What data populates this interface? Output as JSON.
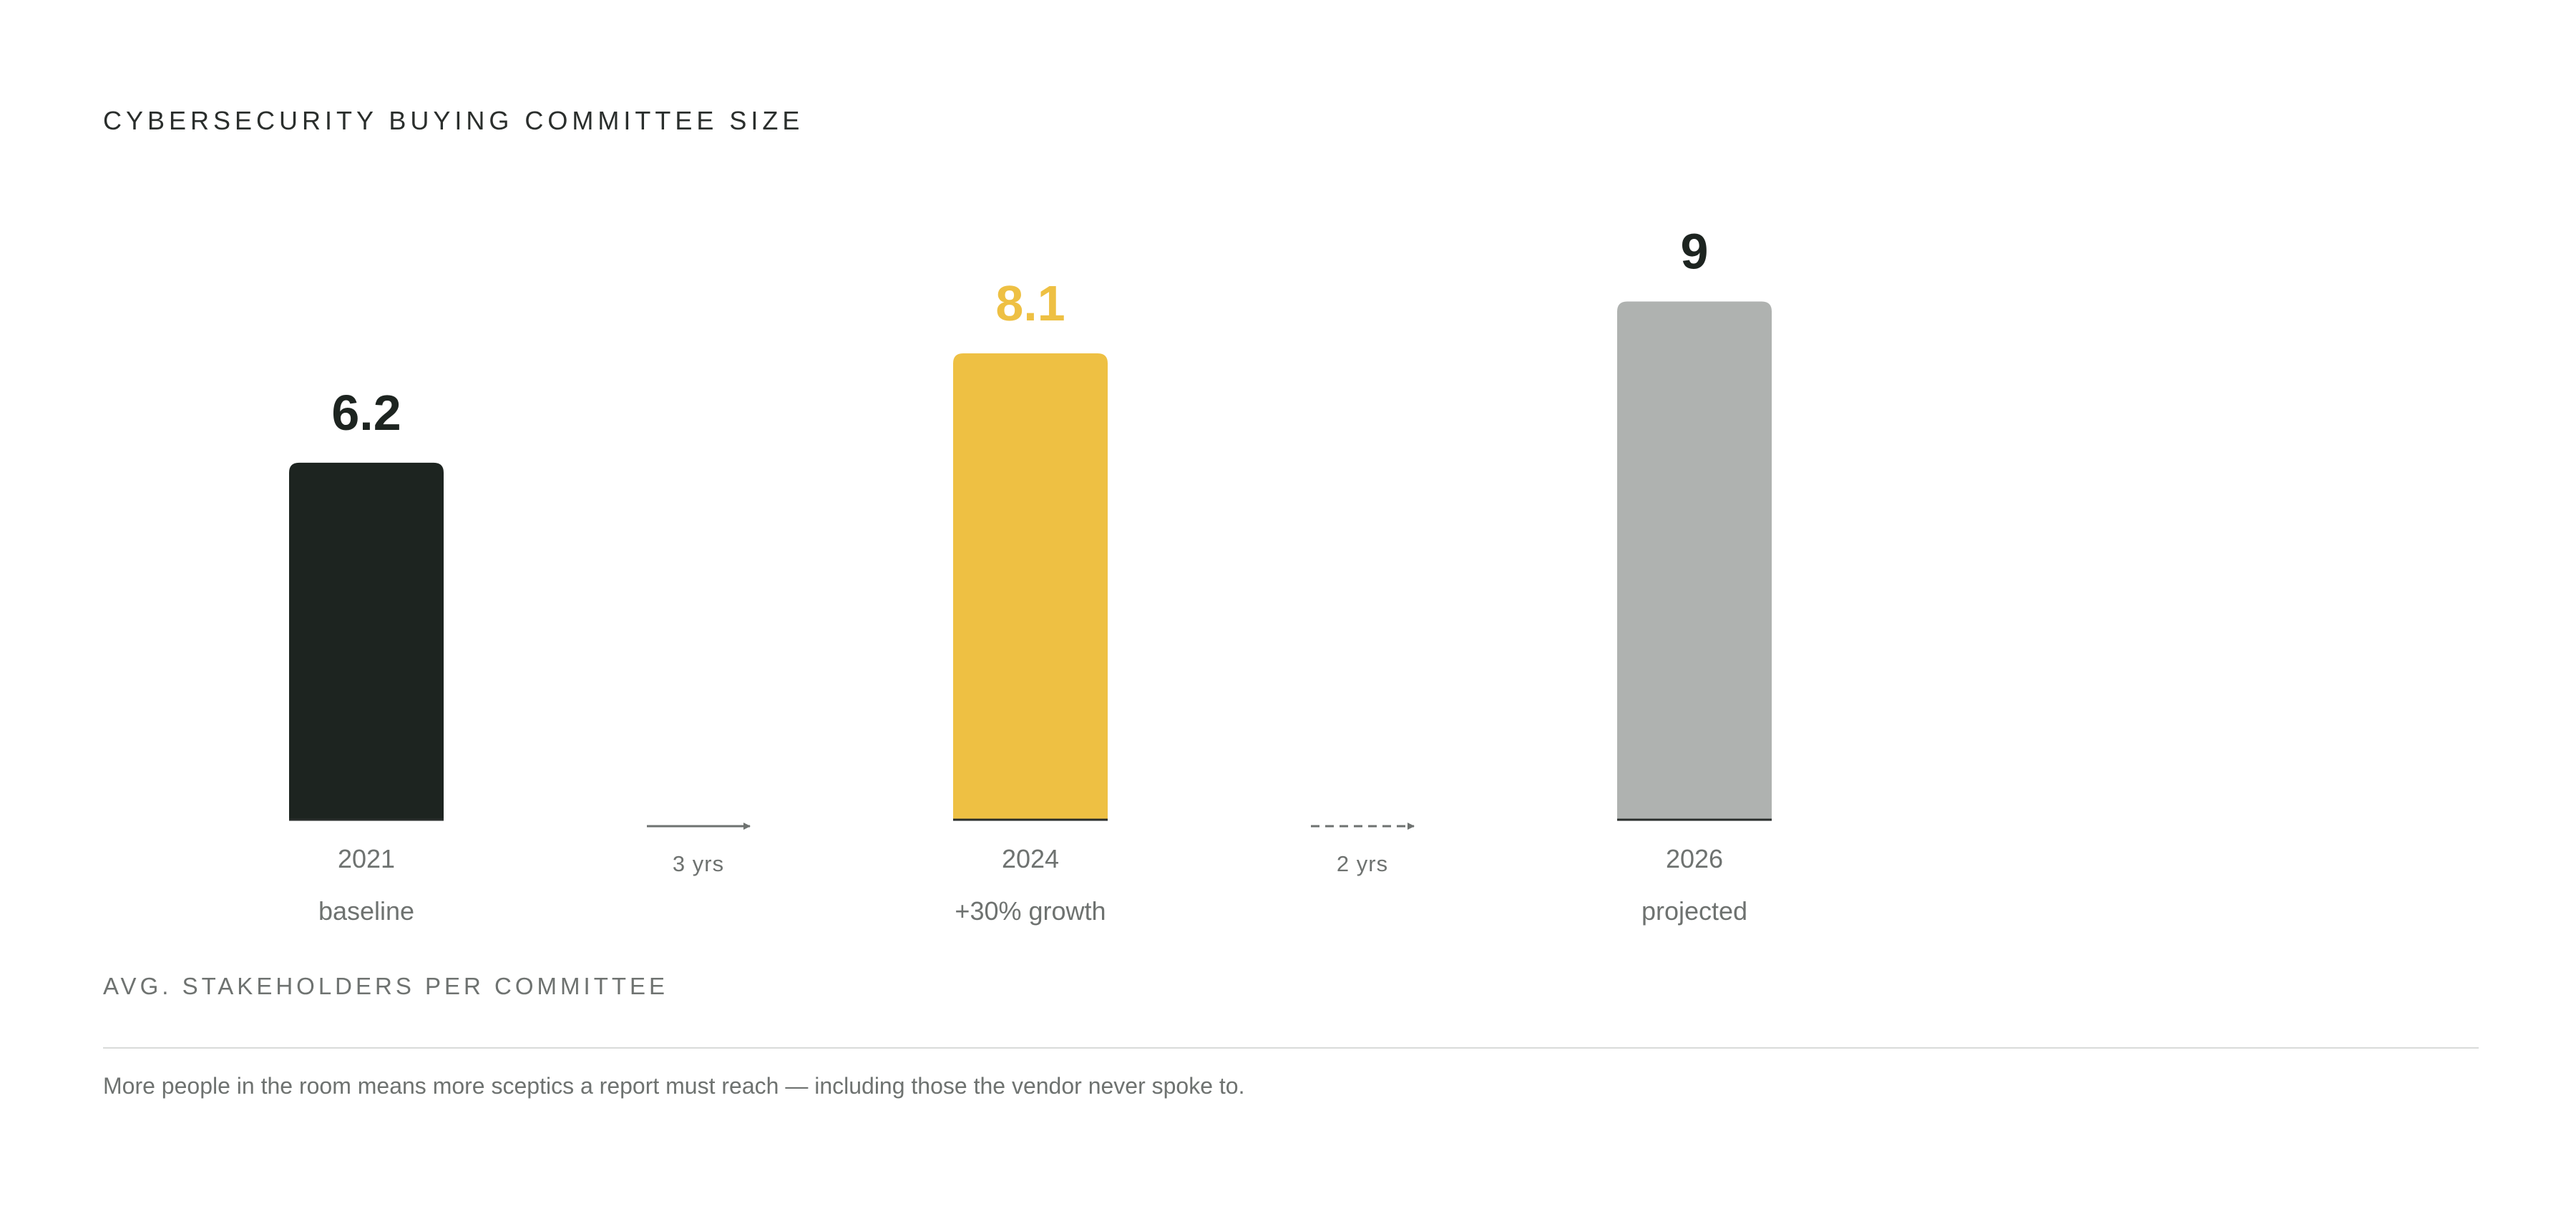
{
  "chart_data": {
    "type": "bar",
    "title": "CYBERSECURITY BUYING COMMITTEE SIZE",
    "ylabel": "AVG. STAKEHOLDERS PER COMMITTEE",
    "categories": [
      "2021",
      "2024",
      "2026"
    ],
    "subtitles": [
      "baseline",
      "+30% growth",
      "projected"
    ],
    "values": [
      6.2,
      8.1,
      9
    ],
    "value_labels": [
      "6.2",
      "8.1",
      "9"
    ],
    "colors": [
      "#1d2420",
      "#eec043",
      "#afb2b0"
    ],
    "value_label_colors": [
      "#1d2420",
      "#eec043",
      "#1d2420"
    ],
    "transitions": [
      {
        "label": "3 yrs",
        "style": "solid"
      },
      {
        "label": "2 yrs",
        "style": "dashed"
      }
    ],
    "ylim": [
      0,
      10
    ],
    "grid": false
  },
  "footnote": "More people in the room means more sceptics a report must reach — including those the vendor never spoke to."
}
